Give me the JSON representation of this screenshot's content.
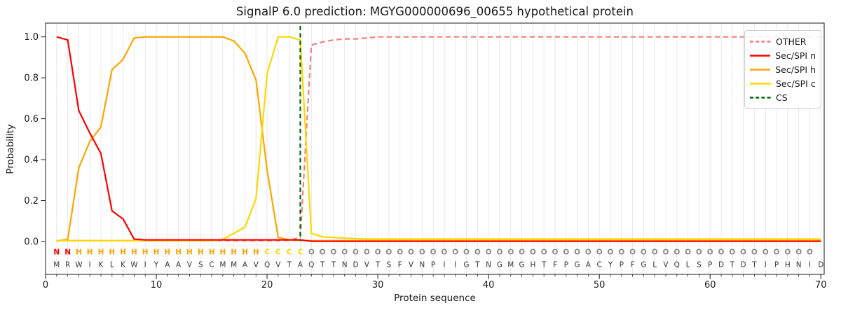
{
  "title": "SignalP 6.0 prediction: MGYG000000696_00655 hypothetical protein",
  "chart_data": {
    "type": "line",
    "title": "SignalP 6.0 prediction: MGYG000000696_00655 hypothetical protein",
    "xlabel": "Protein sequence",
    "ylabel": "Probability",
    "xlim": [
      0,
      70.3
    ],
    "ylim": [
      -0.16,
      1.07
    ],
    "x_ticks": [
      0,
      10,
      20,
      30,
      40,
      50,
      60,
      70
    ],
    "y_ticks": [
      0.0,
      0.2,
      0.4,
      0.6,
      0.8,
      1.0
    ],
    "grid": "vertical light-gray gridline at every residue position 1-70",
    "x_start": 1,
    "sequence": "MRWIKLKWIYAAVSCMMAVQVTAQTTNDVTSFVNPIIGTNGMGHTFPGACYPFGLVQLSPDTDTIPHNID",
    "region_labels": "NNHHHHHHHHHHHHHHHHHCCCCOOOOOOOOOOOOOOOOOOOOOOOOOOOOOOOOOOOOOOOOOOOOOO",
    "region_colors": {
      "N": "#ff0000",
      "H": "#ffa500",
      "C": "#ffd700",
      "O": "#8a8a8a"
    },
    "sequence_color": "#3a3a3a",
    "cs_position": 23,
    "cs_color": "#006400",
    "series": [
      {
        "name": "OTHER",
        "color": "#f08080",
        "dash": true,
        "values": [
          0.004,
          0.004,
          0.004,
          0.004,
          0.004,
          0.004,
          0.004,
          0.004,
          0.004,
          0.004,
          0.004,
          0.004,
          0.004,
          0.004,
          0.004,
          0.004,
          0.004,
          0.004,
          0.004,
          0.004,
          0.004,
          0.006,
          0.02,
          0.96,
          0.975,
          0.985,
          0.99,
          0.99,
          0.995,
          1,
          1,
          1,
          1,
          1,
          1,
          1,
          1,
          1,
          1,
          1,
          1,
          1,
          1,
          1,
          1,
          1,
          1,
          1,
          1,
          1,
          1,
          1,
          1,
          1,
          1,
          1,
          1,
          1,
          1,
          1,
          1,
          1,
          1,
          1,
          1,
          1,
          1,
          1,
          1,
          1
        ]
      },
      {
        "name": "Sec/SPI n",
        "color": "#ff0000",
        "dash": false,
        "values": [
          1.0,
          0.985,
          0.64,
          0.53,
          0.43,
          0.15,
          0.11,
          0.012,
          0.008,
          0.008,
          0.008,
          0.008,
          0.008,
          0.008,
          0.008,
          0.008,
          0.008,
          0.008,
          0.008,
          0.008,
          0.008,
          0.008,
          0.008,
          0.001,
          0.001,
          0.001,
          0.001,
          0.001,
          0.001,
          0.001,
          0.001,
          0.001,
          0.001,
          0.001,
          0.001,
          0.001,
          0.001,
          0.001,
          0.001,
          0.001,
          0.001,
          0.001,
          0.001,
          0.001,
          0.001,
          0.001,
          0.001,
          0.001,
          0.001,
          0.001,
          0.001,
          0.001,
          0.001,
          0.001,
          0.001,
          0.001,
          0.001,
          0.001,
          0.001,
          0.001,
          0.001,
          0.001,
          0.001,
          0.001,
          0.001,
          0.001,
          0.001,
          0.001,
          0.001,
          0.001
        ]
      },
      {
        "name": "Sec/SPI h",
        "color": "#ffa500",
        "dash": false,
        "values": [
          0.002,
          0.01,
          0.36,
          0.49,
          0.56,
          0.84,
          0.89,
          0.995,
          1,
          1,
          1,
          1,
          1,
          1,
          1,
          1,
          0.98,
          0.92,
          0.79,
          0.35,
          0.02,
          0.008,
          0.005,
          0.004,
          0.004,
          0.004,
          0.004,
          0.004,
          0.004,
          0.004,
          0.004,
          0.004,
          0.004,
          0.004,
          0.004,
          0.004,
          0.004,
          0.004,
          0.004,
          0.004,
          0.004,
          0.004,
          0.004,
          0.004,
          0.004,
          0.004,
          0.004,
          0.004,
          0.004,
          0.004,
          0.004,
          0.004,
          0.004,
          0.004,
          0.004,
          0.004,
          0.004,
          0.004,
          0.004,
          0.004,
          0.004,
          0.004,
          0.004,
          0.004,
          0.004,
          0.004,
          0.004,
          0.004,
          0.004,
          0.004
        ]
      },
      {
        "name": "Sec/SPI c",
        "color": "#ffd700",
        "dash": false,
        "values": [
          0.004,
          0.004,
          0.004,
          0.004,
          0.004,
          0.004,
          0.004,
          0.004,
          0.004,
          0.004,
          0.004,
          0.004,
          0.004,
          0.004,
          0.004,
          0.01,
          0.04,
          0.07,
          0.21,
          0.82,
          1.0,
          1.0,
          0.985,
          0.04,
          0.023,
          0.02,
          0.016,
          0.014,
          0.012,
          0.012,
          0.012,
          0.012,
          0.012,
          0.012,
          0.012,
          0.012,
          0.012,
          0.012,
          0.012,
          0.012,
          0.012,
          0.012,
          0.012,
          0.012,
          0.012,
          0.012,
          0.012,
          0.012,
          0.012,
          0.012,
          0.012,
          0.012,
          0.012,
          0.012,
          0.012,
          0.012,
          0.012,
          0.012,
          0.012,
          0.012,
          0.012,
          0.012,
          0.012,
          0.012,
          0.012,
          0.012,
          0.012,
          0.012,
          0.012,
          0.012
        ]
      }
    ]
  },
  "legend": {
    "position": "upper right",
    "items": [
      {
        "label": "OTHER",
        "color": "#f08080",
        "dash": true
      },
      {
        "label": "Sec/SPI n",
        "color": "#ff0000",
        "dash": false
      },
      {
        "label": "Sec/SPI h",
        "color": "#ffa500",
        "dash": false
      },
      {
        "label": "Sec/SPI c",
        "color": "#ffd700",
        "dash": false
      },
      {
        "label": "CS",
        "color": "#006400",
        "dash": true
      }
    ]
  }
}
